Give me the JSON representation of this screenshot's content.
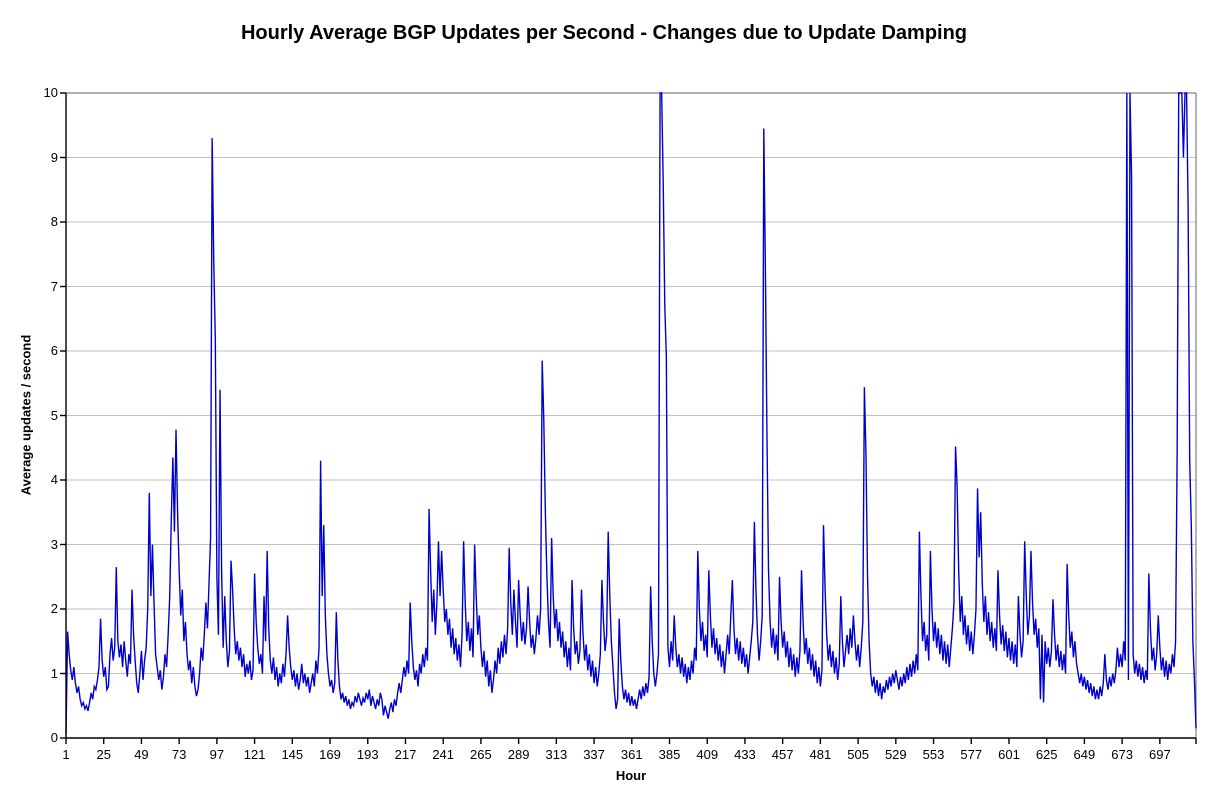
{
  "title": "Hourly Average BGP Updates per Second - Changes due to Update Damping",
  "x_axis": {
    "label": "Hour",
    "tick_labels": [
      1,
      25,
      49,
      73,
      97,
      121,
      145,
      169,
      193,
      217,
      241,
      265,
      289,
      313,
      337,
      361,
      385,
      409,
      433,
      457,
      481,
      505,
      529,
      553,
      577,
      601,
      625,
      649,
      673,
      697
    ]
  },
  "y_axis": {
    "label": "Average updates / second",
    "tick_labels": [
      0,
      1,
      2,
      3,
      4,
      5,
      6,
      7,
      8,
      9,
      10
    ]
  },
  "colors": {
    "series_line": "#0000CD",
    "gridline": "#C0C0C0",
    "plot_border": "#808080",
    "axis": "#000000",
    "background": "#FFFFFF"
  },
  "chart_data": {
    "type": "line",
    "title": "Hourly Average BGP Updates per Second - Changes due to Update Damping",
    "xlabel": "Hour",
    "ylabel": "Average updates / second",
    "x_start": 1,
    "x_end": 720,
    "x_tick_interval": 24,
    "ylim": [
      0,
      10
    ],
    "grid": "horizontal",
    "legend": "none",
    "series": [
      {
        "name": "Hourly average BGP updates per second",
        "color": "#0000CD",
        "values": [
          0.05,
          1.65,
          1.3,
          1.05,
          0.9,
          1.1,
          0.85,
          0.7,
          0.8,
          0.6,
          0.5,
          0.55,
          0.45,
          0.5,
          0.42,
          0.55,
          0.7,
          0.6,
          0.8,
          0.75,
          0.9,
          1.1,
          1.85,
          1.2,
          0.95,
          1.1,
          0.75,
          0.8,
          1.3,
          1.55,
          1.2,
          1.4,
          2.65,
          1.5,
          1.25,
          1.45,
          1.1,
          1.5,
          1.2,
          0.95,
          1.3,
          1.15,
          2.3,
          1.6,
          1.2,
          0.85,
          0.7,
          1.0,
          1.35,
          0.9,
          1.2,
          1.4,
          2.0,
          3.8,
          2.2,
          3.0,
          2.1,
          1.3,
          1.1,
          0.9,
          1.05,
          0.75,
          0.95,
          1.3,
          1.1,
          1.6,
          2.2,
          3.4,
          4.35,
          3.2,
          4.78,
          3.5,
          2.6,
          1.9,
          2.3,
          1.5,
          1.8,
          1.3,
          1.05,
          1.2,
          0.85,
          1.1,
          0.8,
          0.65,
          0.75,
          1.0,
          1.4,
          1.2,
          1.6,
          2.1,
          1.7,
          2.4,
          3.1,
          9.3,
          7.4,
          6.2,
          2.5,
          1.6,
          5.4,
          2.6,
          1.4,
          2.2,
          1.5,
          1.1,
          1.35,
          2.75,
          2.3,
          1.7,
          1.3,
          1.5,
          1.2,
          1.4,
          1.1,
          1.3,
          0.95,
          1.15,
          1.0,
          1.2,
          0.9,
          1.05,
          2.55,
          1.8,
          1.4,
          1.15,
          1.3,
          1.0,
          2.2,
          1.5,
          2.9,
          1.7,
          1.2,
          1.0,
          1.25,
          0.9,
          1.1,
          0.8,
          1.0,
          0.85,
          1.15,
          0.95,
          1.3,
          1.9,
          1.4,
          1.1,
          0.9,
          1.05,
          0.8,
          1.0,
          0.75,
          0.9,
          1.15,
          0.85,
          1.0,
          0.8,
          0.95,
          0.7,
          0.85,
          1.0,
          0.8,
          1.2,
          1.0,
          1.4,
          4.3,
          2.2,
          3.3,
          1.9,
          1.3,
          1.0,
          0.8,
          0.9,
          0.7,
          0.85,
          1.95,
          1.2,
          0.8,
          0.6,
          0.7,
          0.55,
          0.65,
          0.5,
          0.6,
          0.45,
          0.55,
          0.5,
          0.65,
          0.55,
          0.7,
          0.6,
          0.5,
          0.62,
          0.55,
          0.7,
          0.6,
          0.75,
          0.5,
          0.65,
          0.55,
          0.45,
          0.6,
          0.5,
          0.7,
          0.6,
          0.35,
          0.5,
          0.4,
          0.3,
          0.45,
          0.55,
          0.4,
          0.6,
          0.5,
          0.7,
          0.85,
          0.7,
          0.9,
          1.1,
          0.95,
          1.2,
          1.0,
          2.1,
          1.5,
          1.1,
          0.9,
          1.05,
          0.8,
          1.15,
          1.0,
          1.3,
          1.1,
          1.4,
          1.2,
          3.55,
          2.6,
          1.8,
          2.3,
          1.6,
          2.1,
          3.05,
          2.2,
          2.9,
          2.3,
          1.8,
          2.0,
          1.6,
          1.85,
          1.4,
          1.7,
          1.3,
          1.55,
          1.2,
          1.45,
          1.1,
          1.6,
          3.05,
          2.1,
          1.5,
          1.8,
          1.35,
          1.7,
          1.25,
          3.0,
          2.2,
          1.6,
          1.9,
          1.4,
          1.1,
          1.35,
          0.95,
          1.2,
          0.8,
          1.05,
          0.7,
          0.9,
          1.2,
          1.0,
          1.4,
          1.15,
          1.5,
          1.25,
          1.6,
          1.3,
          1.7,
          2.95,
          2.1,
          1.6,
          2.3,
          1.8,
          1.4,
          2.45,
          1.9,
          1.5,
          1.8,
          1.45,
          1.7,
          2.35,
          1.8,
          1.4,
          1.6,
          1.3,
          1.55,
          1.9,
          1.6,
          2.0,
          5.85,
          4.95,
          3.5,
          2.5,
          1.8,
          1.4,
          3.1,
          2.2,
          1.7,
          2.0,
          1.5,
          1.8,
          1.4,
          1.65,
          1.25,
          1.5,
          1.1,
          1.4,
          1.05,
          2.45,
          1.7,
          1.3,
          1.5,
          1.15,
          1.35,
          2.3,
          1.6,
          1.2,
          1.45,
          1.05,
          1.3,
          0.95,
          1.2,
          0.85,
          1.1,
          0.8,
          1.0,
          1.3,
          2.45,
          1.8,
          1.35,
          1.6,
          3.2,
          2.2,
          1.5,
          1.1,
          0.7,
          0.45,
          0.6,
          1.85,
          1.2,
          0.8,
          0.6,
          0.75,
          0.55,
          0.7,
          0.5,
          0.65,
          0.5,
          0.6,
          0.45,
          0.6,
          0.75,
          0.6,
          0.8,
          0.65,
          0.85,
          0.7,
          0.95,
          2.35,
          1.5,
          1.0,
          0.8,
          1.0,
          1.3,
          10.4,
          10.4,
          8.6,
          6.7,
          5.9,
          1.4,
          1.1,
          1.5,
          1.2,
          1.9,
          1.4,
          1.1,
          1.3,
          1.0,
          1.25,
          0.95,
          1.15,
          0.85,
          1.1,
          0.9,
          1.2,
          1.0,
          1.4,
          1.2,
          2.9,
          2.0,
          1.5,
          1.8,
          1.35,
          1.6,
          1.25,
          2.6,
          1.9,
          1.4,
          1.7,
          1.3,
          1.55,
          1.2,
          1.45,
          1.1,
          1.35,
          1.0,
          1.3,
          1.6,
          1.3,
          1.9,
          2.45,
          1.7,
          1.3,
          1.55,
          1.2,
          1.5,
          1.15,
          1.4,
          1.1,
          1.3,
          1.0,
          1.25,
          1.5,
          1.8,
          3.35,
          2.3,
          1.6,
          1.2,
          1.5,
          1.9,
          9.45,
          7.3,
          4.7,
          2.6,
          1.8,
          1.4,
          1.7,
          1.3,
          1.6,
          1.2,
          2.5,
          1.8,
          1.4,
          1.65,
          1.25,
          1.5,
          1.1,
          1.4,
          1.05,
          1.3,
          0.95,
          1.25,
          1.0,
          1.35,
          2.6,
          1.8,
          1.3,
          1.55,
          1.15,
          1.4,
          1.05,
          1.3,
          0.95,
          1.2,
          0.85,
          1.1,
          0.8,
          1.05,
          3.3,
          2.3,
          1.6,
          1.2,
          1.45,
          1.1,
          1.35,
          1.0,
          1.25,
          0.9,
          1.15,
          2.2,
          1.5,
          1.1,
          1.35,
          1.6,
          1.3,
          1.7,
          1.4,
          1.9,
          1.5,
          1.2,
          1.45,
          1.1,
          1.4,
          1.8,
          5.44,
          4.4,
          2.5,
          1.5,
          1.0,
          0.8,
          0.95,
          0.7,
          0.9,
          0.65,
          0.85,
          0.6,
          0.8,
          0.7,
          0.9,
          0.75,
          0.95,
          0.8,
          1.0,
          0.85,
          1.05,
          0.9,
          0.75,
          0.95,
          0.8,
          1.0,
          0.85,
          1.1,
          0.9,
          1.15,
          0.95,
          1.2,
          1.0,
          1.3,
          1.05,
          3.2,
          2.2,
          1.5,
          1.8,
          1.35,
          1.6,
          1.2,
          2.9,
          2.0,
          1.5,
          1.8,
          1.4,
          1.7,
          1.3,
          1.6,
          1.2,
          1.5,
          1.15,
          1.45,
          1.1,
          1.4,
          1.7,
          2.1,
          4.52,
          3.9,
          2.6,
          1.8,
          2.2,
          1.6,
          1.9,
          1.45,
          1.75,
          1.35,
          1.65,
          1.3,
          1.6,
          2.0,
          3.87,
          2.8,
          3.5,
          2.4,
          1.8,
          2.2,
          1.6,
          1.95,
          1.5,
          1.8,
          1.4,
          1.7,
          1.35,
          2.6,
          1.9,
          1.45,
          1.75,
          1.35,
          1.65,
          1.25,
          1.55,
          1.2,
          1.5,
          1.15,
          1.45,
          1.1,
          2.2,
          1.6,
          1.25,
          1.5,
          3.05,
          2.2,
          1.6,
          1.9,
          2.9,
          2.1,
          1.6,
          1.85,
          1.4,
          1.7,
          0.6,
          1.6,
          0.55,
          1.5,
          1.15,
          1.4,
          1.1,
          1.35,
          2.15,
          1.6,
          1.2,
          1.45,
          1.1,
          1.35,
          1.05,
          1.3,
          1.0,
          2.7,
          1.9,
          1.4,
          1.65,
          1.25,
          1.5,
          1.15,
          1.0,
          0.85,
          1.0,
          0.8,
          0.95,
          0.75,
          0.9,
          0.7,
          0.85,
          0.65,
          0.8,
          0.6,
          0.75,
          0.6,
          0.8,
          0.65,
          0.85,
          1.3,
          0.9,
          0.75,
          0.95,
          0.8,
          1.0,
          0.85,
          1.05,
          1.4,
          1.1,
          1.3,
          1.1,
          1.5,
          1.2,
          10.4,
          0.9,
          10.4,
          8.7,
          1.3,
          1.0,
          1.2,
          0.95,
          1.15,
          0.9,
          1.1,
          0.85,
          1.05,
          0.9,
          2.55,
          1.7,
          1.2,
          1.4,
          1.05,
          1.3,
          1.9,
          1.4,
          1.05,
          1.25,
          0.95,
          1.2,
          0.9,
          1.15,
          1.0,
          1.3,
          1.1,
          1.5,
          4.4,
          10.4,
          10.4,
          10.4,
          9.0,
          10.4,
          10.4,
          8.2,
          4.3,
          3.3,
          1.5,
          0.9,
          0.15
        ]
      }
    ]
  }
}
